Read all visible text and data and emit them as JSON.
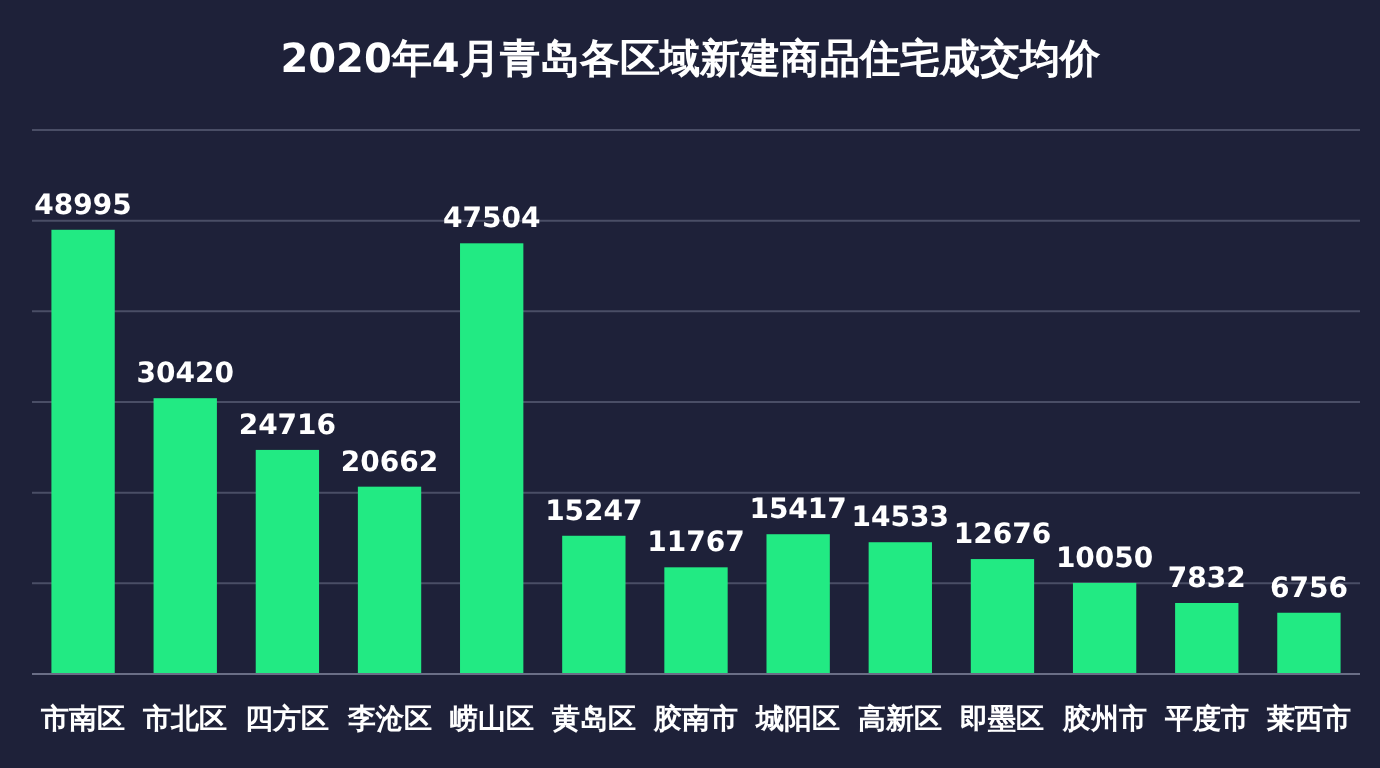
{
  "chart_data": {
    "type": "bar",
    "title": "2020年4月青岛各区域新建商品住宅成交均价",
    "categories": [
      "市南区",
      "市北区",
      "四方区",
      "李沧区",
      "崂山区",
      "黄岛区",
      "胶南市",
      "城阳区",
      "高新区",
      "即墨区",
      "胶州市",
      "平度市",
      "莱西市"
    ],
    "values": [
      48995,
      30420,
      24716,
      20662,
      47504,
      15247,
      11767,
      15417,
      14533,
      12676,
      10050,
      7832,
      6756
    ],
    "color": "#22ea83",
    "data_labels": true,
    "grid": "y",
    "ylim": [
      0,
      60000
    ],
    "yticks": [
      {
        "value": 0,
        "label": null
      },
      {
        "value": 10000,
        "label": null
      },
      {
        "value": 20000,
        "label": null
      },
      {
        "value": 30000,
        "label": null
      },
      {
        "value": 40000,
        "label": null
      },
      {
        "value": 50000,
        "label": null
      },
      {
        "value": 60000,
        "label": null
      }
    ],
    "tick_labels": "x"
  }
}
